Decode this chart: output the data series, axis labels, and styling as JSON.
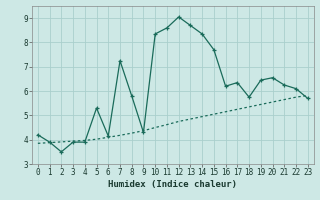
{
  "xlabel": "Humidex (Indice chaleur)",
  "bg_color": "#cde8e5",
  "grid_color": "#aacfcc",
  "line_color": "#1a6b5a",
  "xlim": [
    -0.5,
    23.5
  ],
  "ylim": [
    3.0,
    9.5
  ],
  "yticks": [
    3,
    4,
    5,
    6,
    7,
    8,
    9
  ],
  "xticks": [
    0,
    1,
    2,
    3,
    4,
    5,
    6,
    7,
    8,
    9,
    10,
    11,
    12,
    13,
    14,
    15,
    16,
    17,
    18,
    19,
    20,
    21,
    22,
    23
  ],
  "series1_x": [
    0,
    1,
    2,
    3,
    4,
    5,
    6,
    7,
    8,
    9,
    10,
    11,
    12,
    13,
    14,
    15,
    16,
    17,
    18,
    19,
    20,
    21,
    22,
    23
  ],
  "series1_y": [
    4.2,
    3.9,
    3.5,
    3.9,
    3.9,
    5.3,
    4.15,
    7.25,
    5.8,
    4.3,
    8.35,
    8.6,
    9.05,
    8.7,
    8.35,
    7.7,
    6.2,
    6.35,
    5.75,
    6.45,
    6.55,
    6.25,
    6.1,
    5.7
  ],
  "series2_x": [
    0,
    1,
    2,
    3,
    4,
    5,
    6,
    7,
    8,
    9,
    10,
    11,
    12,
    13,
    14,
    15,
    16,
    17,
    18,
    19,
    20,
    21,
    22,
    23
  ],
  "series2_y": [
    3.85,
    3.88,
    3.91,
    3.94,
    3.97,
    4.02,
    4.1,
    4.18,
    4.27,
    4.37,
    4.5,
    4.62,
    4.75,
    4.85,
    4.95,
    5.05,
    5.15,
    5.25,
    5.35,
    5.45,
    5.55,
    5.65,
    5.75,
    5.82
  ]
}
